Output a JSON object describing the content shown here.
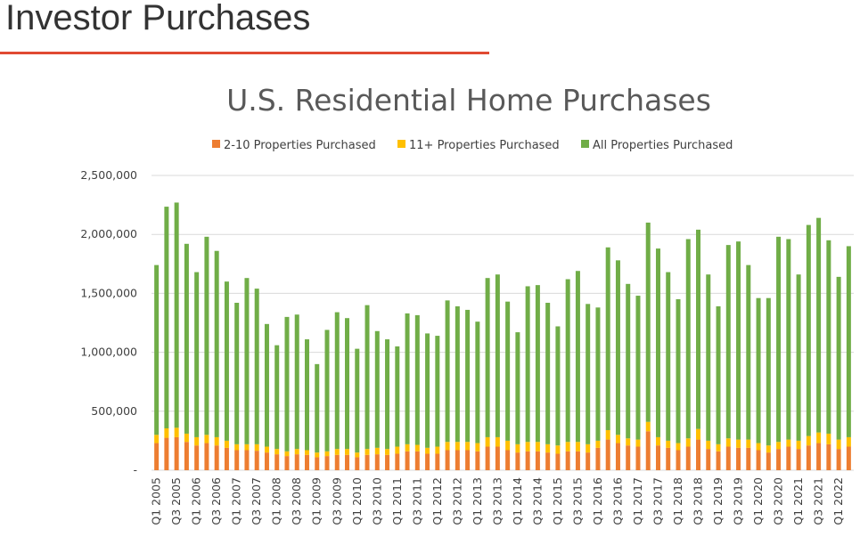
{
  "slide": {
    "title": "Investor Purchases"
  },
  "colors": {
    "accent_rule": "#e04a32",
    "small_investor": "#ed7d31",
    "large_investor": "#ffc000",
    "all": "#70ad47"
  },
  "chart_data": {
    "type": "bar",
    "stacked": true,
    "title": "U.S. Residential Home Purchases",
    "legend_position": "top",
    "grid": true,
    "ylim": [
      0,
      2500000
    ],
    "y_ticks": [
      "-",
      "500,000",
      "1,000,000",
      "1,500,000",
      "2,000,000",
      "2,500,000"
    ],
    "y_tick_values": [
      0,
      500000,
      1000000,
      1500000,
      2000000,
      2500000
    ],
    "categories": [
      "Q1 2005",
      "Q2 2005",
      "Q3 2005",
      "Q4 2005",
      "Q1 2006",
      "Q2 2006",
      "Q3 2006",
      "Q4 2006",
      "Q1 2007",
      "Q2 2007",
      "Q3 2007",
      "Q4 2007",
      "Q1 2008",
      "Q2 2008",
      "Q3 2008",
      "Q4 2008",
      "Q1 2009",
      "Q2 2009",
      "Q3 2009",
      "Q4 2009",
      "Q1 2010",
      "Q2 2010",
      "Q3 2010",
      "Q4 2010",
      "Q1 2011",
      "Q2 2011",
      "Q3 2011",
      "Q4 2011",
      "Q1 2012",
      "Q2 2012",
      "Q3 2012",
      "Q4 2012",
      "Q1 2013",
      "Q2 2013",
      "Q3 2013",
      "Q4 2013",
      "Q1 2014",
      "Q2 2014",
      "Q3 2014",
      "Q4 2014",
      "Q1 2015",
      "Q2 2015",
      "Q3 2015",
      "Q4 2015",
      "Q1 2016",
      "Q2 2016",
      "Q3 2016",
      "Q4 2016",
      "Q1 2017",
      "Q2 2017",
      "Q3 2017",
      "Q4 2017",
      "Q1 2018",
      "Q2 2018",
      "Q3 2018",
      "Q4 2018",
      "Q1 2019",
      "Q2 2019",
      "Q3 2019",
      "Q4 2019",
      "Q1 2020",
      "Q2 2020",
      "Q3 2020",
      "Q4 2020",
      "Q1 2021",
      "Q2 2021",
      "Q3 2021",
      "Q4 2021",
      "Q1 2022",
      "Q2 2022"
    ],
    "x_tick_labels": [
      "Q1 2005",
      "Q3 2005",
      "Q1 2006",
      "Q3 2006",
      "Q1 2007",
      "Q3 2007",
      "Q1 2008",
      "Q3 2008",
      "Q1 2009",
      "Q3 2009",
      "Q1 2010",
      "Q3 2010",
      "Q1 2011",
      "Q3 2011",
      "Q1 2012",
      "Q3 2012",
      "Q1 2013",
      "Q3 2013",
      "Q1 2014",
      "Q3 2014",
      "Q1 2015",
      "Q3 2015",
      "Q1 2016",
      "Q3 2016",
      "Q1 2017",
      "Q3 2017",
      "Q1 2018",
      "Q3 2018",
      "Q1 2019",
      "Q3 2019",
      "Q1 2020",
      "Q3 2020",
      "Q1 2021",
      "Q3 2021",
      "Q1 2022"
    ],
    "series": [
      {
        "name": "2-10 Properties Purchased",
        "color": "#ed7d31",
        "values": [
          230000,
          275000,
          280000,
          240000,
          210000,
          230000,
          210000,
          190000,
          170000,
          170000,
          165000,
          150000,
          135000,
          120000,
          135000,
          130000,
          110000,
          120000,
          130000,
          130000,
          110000,
          130000,
          135000,
          130000,
          140000,
          160000,
          160000,
          140000,
          140000,
          170000,
          170000,
          170000,
          160000,
          200000,
          200000,
          170000,
          150000,
          160000,
          160000,
          150000,
          140000,
          160000,
          160000,
          150000,
          190000,
          260000,
          230000,
          210000,
          200000,
          330000,
          210000,
          190000,
          170000,
          200000,
          260000,
          180000,
          160000,
          200000,
          190000,
          190000,
          170000,
          150000,
          180000,
          200000,
          180000,
          210000,
          230000,
          220000,
          180000,
          200000
        ]
      },
      {
        "name": "11+ Properties Purchased",
        "color": "#ffc000",
        "values": [
          70000,
          80000,
          80000,
          70000,
          70000,
          70000,
          70000,
          60000,
          50000,
          50000,
          55000,
          50000,
          45000,
          40000,
          45000,
          40000,
          40000,
          40000,
          50000,
          50000,
          40000,
          50000,
          55000,
          50000,
          60000,
          60000,
          55000,
          50000,
          60000,
          70000,
          70000,
          70000,
          70000,
          80000,
          80000,
          80000,
          70000,
          80000,
          80000,
          70000,
          70000,
          80000,
          80000,
          70000,
          60000,
          80000,
          70000,
          60000,
          60000,
          80000,
          70000,
          60000,
          60000,
          70000,
          90000,
          70000,
          60000,
          70000,
          70000,
          70000,
          60000,
          60000,
          60000,
          60000,
          70000,
          80000,
          90000,
          90000,
          80000,
          80000
        ]
      },
      {
        "name": "All Properties Purchased",
        "color": "#70ad47",
        "values": [
          1440000,
          1880000,
          1910000,
          1610000,
          1400000,
          1680000,
          1580000,
          1350000,
          1200000,
          1410000,
          1320000,
          1040000,
          880000,
          1140000,
          1140000,
          940000,
          750000,
          1030000,
          1160000,
          1110000,
          880000,
          1220000,
          990000,
          930000,
          850000,
          1110000,
          1100000,
          970000,
          940000,
          1200000,
          1150000,
          1120000,
          1030000,
          1350000,
          1380000,
          1180000,
          950000,
          1320000,
          1330000,
          1200000,
          1010000,
          1380000,
          1450000,
          1190000,
          1130000,
          1550000,
          1480000,
          1310000,
          1220000,
          1690000,
          1600000,
          1430000,
          1220000,
          1690000,
          1690000,
          1410000,
          1170000,
          1640000,
          1680000,
          1480000,
          1230000,
          1250000,
          1740000,
          1700000,
          1410000,
          1790000,
          1820000,
          1640000,
          1380000,
          1620000
        ]
      }
    ]
  }
}
